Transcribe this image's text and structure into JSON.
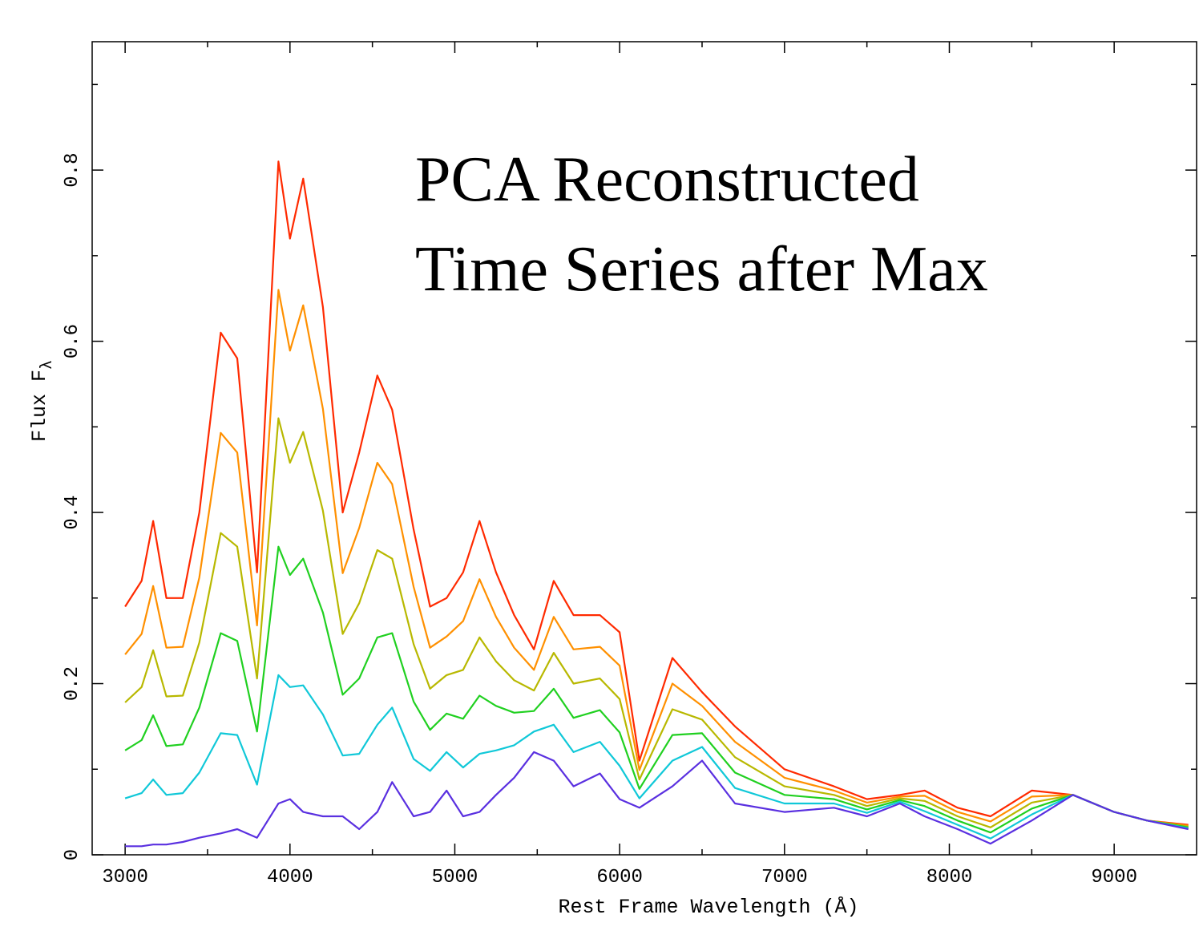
{
  "chart_data": {
    "type": "line",
    "annotation_lines": [
      "PCA Reconstructed",
      "Time Series after Max"
    ],
    "xlabel": "Rest Frame Wavelength (Å)",
    "ylabel": "Flux F",
    "ylabel_subscript": "λ",
    "xlim": [
      2800,
      9500
    ],
    "ylim": [
      0,
      0.95
    ],
    "xticks": [
      3000,
      4000,
      5000,
      6000,
      7000,
      8000,
      9000
    ],
    "xticks_minor": [
      3500,
      4500,
      5500,
      6500,
      7500,
      8500
    ],
    "yticks": [
      0,
      0.2,
      0.4,
      0.6,
      0.8
    ],
    "yticks_minor": [
      0.1,
      0.3,
      0.5,
      0.7,
      0.9
    ],
    "x": [
      3000,
      3100,
      3170,
      3250,
      3350,
      3450,
      3580,
      3680,
      3800,
      3930,
      4000,
      4080,
      4200,
      4320,
      4420,
      4530,
      4620,
      4750,
      4850,
      4950,
      5050,
      5150,
      5250,
      5360,
      5480,
      5600,
      5720,
      5880,
      6000,
      6120,
      6320,
      6500,
      6700,
      7000,
      7300,
      7500,
      7700,
      7850,
      8050,
      8250,
      8500,
      8750,
      9000,
      9200,
      9450
    ],
    "series": [
      {
        "color": "#ff2a00",
        "values": [
          0.29,
          0.32,
          0.39,
          0.3,
          0.3,
          0.4,
          0.61,
          0.58,
          0.33,
          0.81,
          0.72,
          0.79,
          0.64,
          0.4,
          0.47,
          0.56,
          0.52,
          0.38,
          0.29,
          0.3,
          0.33,
          0.39,
          0.33,
          0.28,
          0.24,
          0.32,
          0.28,
          0.28,
          0.26,
          0.11,
          0.23,
          0.19,
          0.15,
          0.1,
          0.08,
          0.065,
          0.07,
          0.075,
          0.055,
          0.045,
          0.075,
          0.07,
          0.05,
          0.04,
          0.035
        ]
      },
      {
        "color": "#ff9000",
        "values": [
          0.234,
          0.258,
          0.314,
          0.242,
          0.243,
          0.324,
          0.493,
          0.47,
          0.268,
          0.66,
          0.589,
          0.642,
          0.521,
          0.329,
          0.382,
          0.458,
          0.433,
          0.313,
          0.242,
          0.255,
          0.273,
          0.322,
          0.278,
          0.242,
          0.216,
          0.278,
          0.24,
          0.243,
          0.221,
          0.099,
          0.2,
          0.174,
          0.132,
          0.09,
          0.075,
          0.061,
          0.068,
          0.069,
          0.05,
          0.039,
          0.068,
          0.07,
          0.05,
          0.04,
          0.034
        ]
      },
      {
        "color": "#b8b800",
        "values": [
          0.178,
          0.196,
          0.239,
          0.185,
          0.186,
          0.248,
          0.376,
          0.36,
          0.206,
          0.51,
          0.458,
          0.494,
          0.402,
          0.258,
          0.294,
          0.356,
          0.346,
          0.246,
          0.194,
          0.21,
          0.216,
          0.254,
          0.226,
          0.204,
          0.192,
          0.236,
          0.2,
          0.206,
          0.182,
          0.088,
          0.17,
          0.158,
          0.114,
          0.08,
          0.07,
          0.057,
          0.066,
          0.063,
          0.045,
          0.032,
          0.061,
          0.07,
          0.05,
          0.04,
          0.033
        ]
      },
      {
        "color": "#20d020",
        "values": [
          0.122,
          0.134,
          0.163,
          0.127,
          0.129,
          0.172,
          0.259,
          0.25,
          0.144,
          0.36,
          0.327,
          0.346,
          0.283,
          0.187,
          0.206,
          0.254,
          0.259,
          0.179,
          0.146,
          0.165,
          0.159,
          0.186,
          0.174,
          0.166,
          0.168,
          0.194,
          0.16,
          0.169,
          0.143,
          0.077,
          0.14,
          0.142,
          0.096,
          0.07,
          0.065,
          0.053,
          0.064,
          0.057,
          0.04,
          0.026,
          0.054,
          0.07,
          0.05,
          0.04,
          0.032
        ]
      },
      {
        "color": "#10c8d8",
        "values": [
          0.066,
          0.072,
          0.088,
          0.07,
          0.072,
          0.096,
          0.142,
          0.14,
          0.082,
          0.21,
          0.196,
          0.198,
          0.164,
          0.116,
          0.118,
          0.152,
          0.172,
          0.112,
          0.098,
          0.12,
          0.102,
          0.118,
          0.122,
          0.128,
          0.144,
          0.152,
          0.12,
          0.132,
          0.104,
          0.066,
          0.11,
          0.126,
          0.078,
          0.06,
          0.06,
          0.049,
          0.062,
          0.051,
          0.035,
          0.019,
          0.047,
          0.07,
          0.05,
          0.04,
          0.031
        ]
      },
      {
        "color": "#5a30e0",
        "values": [
          0.01,
          0.01,
          0.012,
          0.012,
          0.015,
          0.02,
          0.025,
          0.03,
          0.02,
          0.06,
          0.065,
          0.05,
          0.045,
          0.045,
          0.03,
          0.05,
          0.085,
          0.045,
          0.05,
          0.075,
          0.045,
          0.05,
          0.07,
          0.09,
          0.12,
          0.11,
          0.08,
          0.095,
          0.065,
          0.055,
          0.08,
          0.11,
          0.06,
          0.05,
          0.055,
          0.045,
          0.06,
          0.045,
          0.03,
          0.013,
          0.04,
          0.07,
          0.05,
          0.04,
          0.03
        ]
      }
    ]
  }
}
